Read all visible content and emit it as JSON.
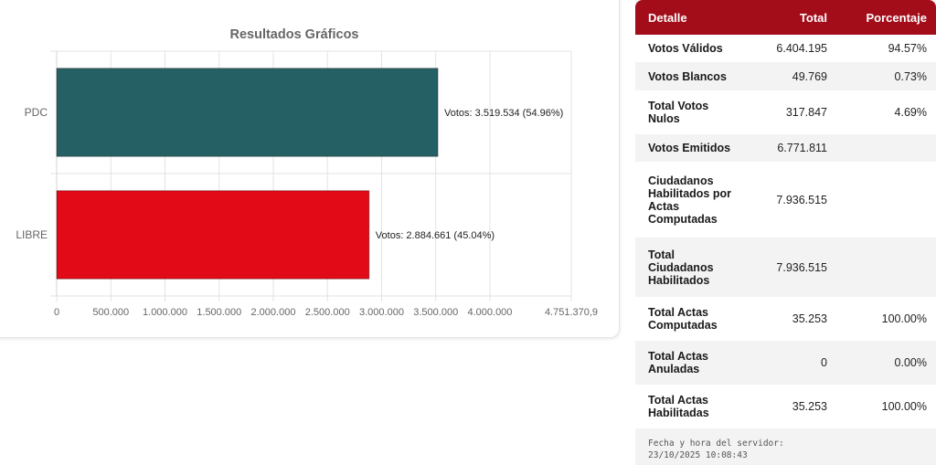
{
  "chart_data": {
    "type": "bar",
    "orientation": "horizontal",
    "title": "Resultados Gráficos",
    "categories": [
      "PDC",
      "LIBRE"
    ],
    "values": [
      3519534,
      2884661
    ],
    "data_labels": [
      "Votos: 3.519.534 (54.96%)",
      "Votos: 2.884.661 (45.04%)"
    ],
    "bar_colors": [
      "#256064",
      "#e20a16"
    ],
    "xlim": [
      0,
      4751370.9
    ],
    "x_ticks": [
      0,
      500000,
      1000000,
      1500000,
      2000000,
      2500000,
      3000000,
      3500000,
      4000000,
      4751370.9
    ],
    "x_tick_labels": [
      "0",
      "500.000",
      "1.000.000",
      "1.500.000",
      "2.000.000",
      "2.500.000",
      "3.000.000",
      "3.500.000",
      "4.000.000",
      "4.751.370,9"
    ],
    "grid": true,
    "xlabel": "",
    "ylabel": ""
  },
  "table": {
    "headers": [
      "Detalle",
      "Total",
      "Porcentaje"
    ],
    "rows": [
      {
        "label": "Votos Válidos",
        "total": "6.404.195",
        "pct": "94.57%"
      },
      {
        "label": "Votos Blancos",
        "total": "49.769",
        "pct": "0.73%"
      },
      {
        "label": "Total Votos Nulos",
        "total": "317.847",
        "pct": "4.69%"
      },
      {
        "label": "Votos Emitidos",
        "total": "6.771.811",
        "pct": ""
      },
      {
        "label": "Ciudadanos Habilitados por Actas Computadas",
        "total": "7.936.515",
        "pct": ""
      },
      {
        "label": "Total Ciudadanos Habilitados",
        "total": "7.936.515",
        "pct": ""
      },
      {
        "label": "Total Actas Computadas",
        "total": "35.253",
        "pct": "100.00%"
      },
      {
        "label": "Total Actas Anuladas",
        "total": "0",
        "pct": "0.00%"
      },
      {
        "label": "Total Actas Habilitadas",
        "total": "35.253",
        "pct": "100.00%"
      }
    ],
    "header_color": "#a30d1a"
  },
  "server": {
    "label": "Fecha y hora del servidor:",
    "datetime": "23/10/2025 10:08:43"
  }
}
